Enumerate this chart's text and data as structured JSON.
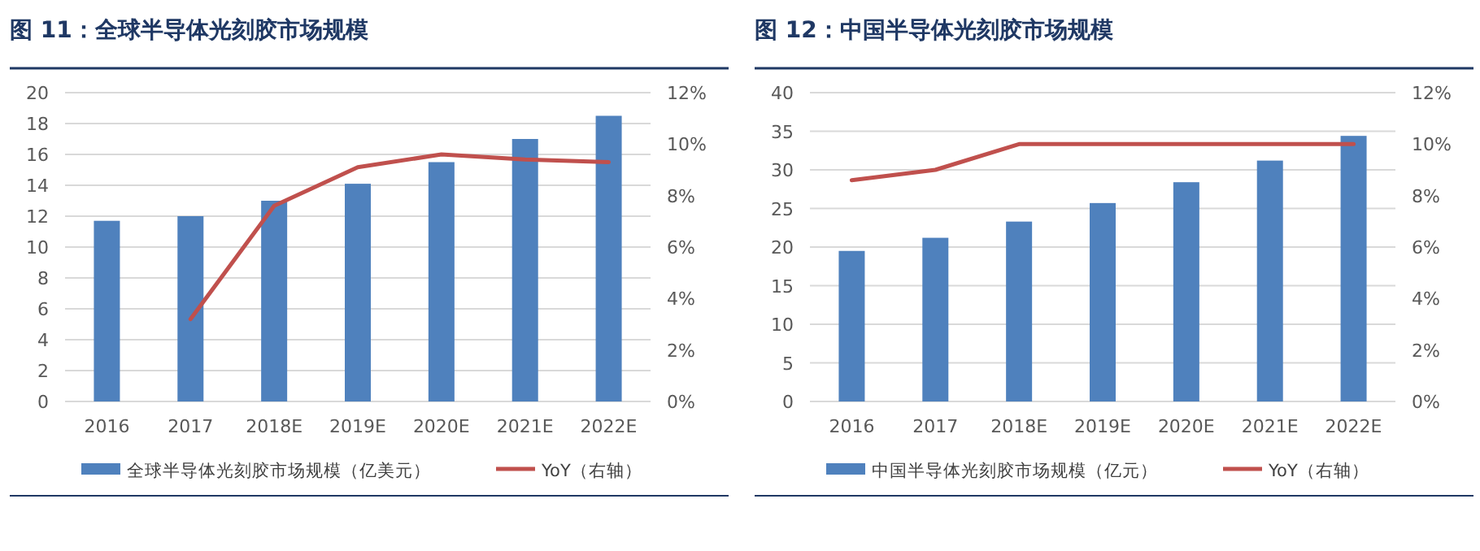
{
  "chart_data": [
    {
      "type": "bar",
      "title": "图 11：全球半导体光刻胶市场规模",
      "categories": [
        "2016",
        "2017",
        "2018E",
        "2019E",
        "2020E",
        "2021E",
        "2022E"
      ],
      "series": [
        {
          "name": "全球半导体光刻胶市场规模（亿美元）",
          "color": "#4f81bd",
          "values": [
            11.7,
            12.0,
            13.0,
            14.1,
            15.5,
            17.0,
            18.5
          ]
        },
        {
          "name": "YoY（右轴）",
          "type": "line",
          "axis": "y2",
          "color": "#c0504d",
          "values": [
            null,
            3.2,
            7.6,
            9.1,
            9.6,
            9.4,
            9.3
          ]
        }
      ],
      "ylim": [
        0,
        20
      ],
      "yticks": [
        0,
        2,
        4,
        6,
        8,
        10,
        12,
        14,
        16,
        18,
        20
      ],
      "y2lim": [
        0,
        12
      ],
      "y2ticks": [
        {
          "value": 0,
          "label": "0%"
        },
        {
          "value": 2,
          "label": "2%"
        },
        {
          "value": 4,
          "label": "4%"
        },
        {
          "value": 6,
          "label": "6%"
        },
        {
          "value": 8,
          "label": "8%"
        },
        {
          "value": 10,
          "label": "10%"
        },
        {
          "value": 12,
          "label": "12%"
        }
      ],
      "grid": "y",
      "legend": "bottom"
    },
    {
      "type": "bar",
      "title": "图 12：中国半导体光刻胶市场规模",
      "categories": [
        "2016",
        "2017",
        "2018E",
        "2019E",
        "2020E",
        "2021E",
        "2022E"
      ],
      "series": [
        {
          "name": "中国半导体光刻胶市场规模（亿元）",
          "color": "#4f81bd",
          "values": [
            19.5,
            21.2,
            23.3,
            25.7,
            28.4,
            31.2,
            34.4
          ]
        },
        {
          "name": "YoY（右轴）",
          "type": "line",
          "axis": "y2",
          "color": "#c0504d",
          "values": [
            8.6,
            9.0,
            10,
            10,
            10,
            10,
            10
          ]
        }
      ],
      "ylim": [
        0,
        40
      ],
      "yticks": [
        0,
        5,
        10,
        15,
        20,
        25,
        30,
        35,
        40
      ],
      "y2lim": [
        0,
        12
      ],
      "y2ticks": [
        {
          "value": 0,
          "label": "0%"
        },
        {
          "value": 2,
          "label": "2%"
        },
        {
          "value": 4,
          "label": "4%"
        },
        {
          "value": 6,
          "label": "6%"
        },
        {
          "value": 8,
          "label": "8%"
        },
        {
          "value": 10,
          "label": "10%"
        },
        {
          "value": 12,
          "label": "12%"
        }
      ],
      "grid": "y",
      "legend": "bottom"
    }
  ]
}
